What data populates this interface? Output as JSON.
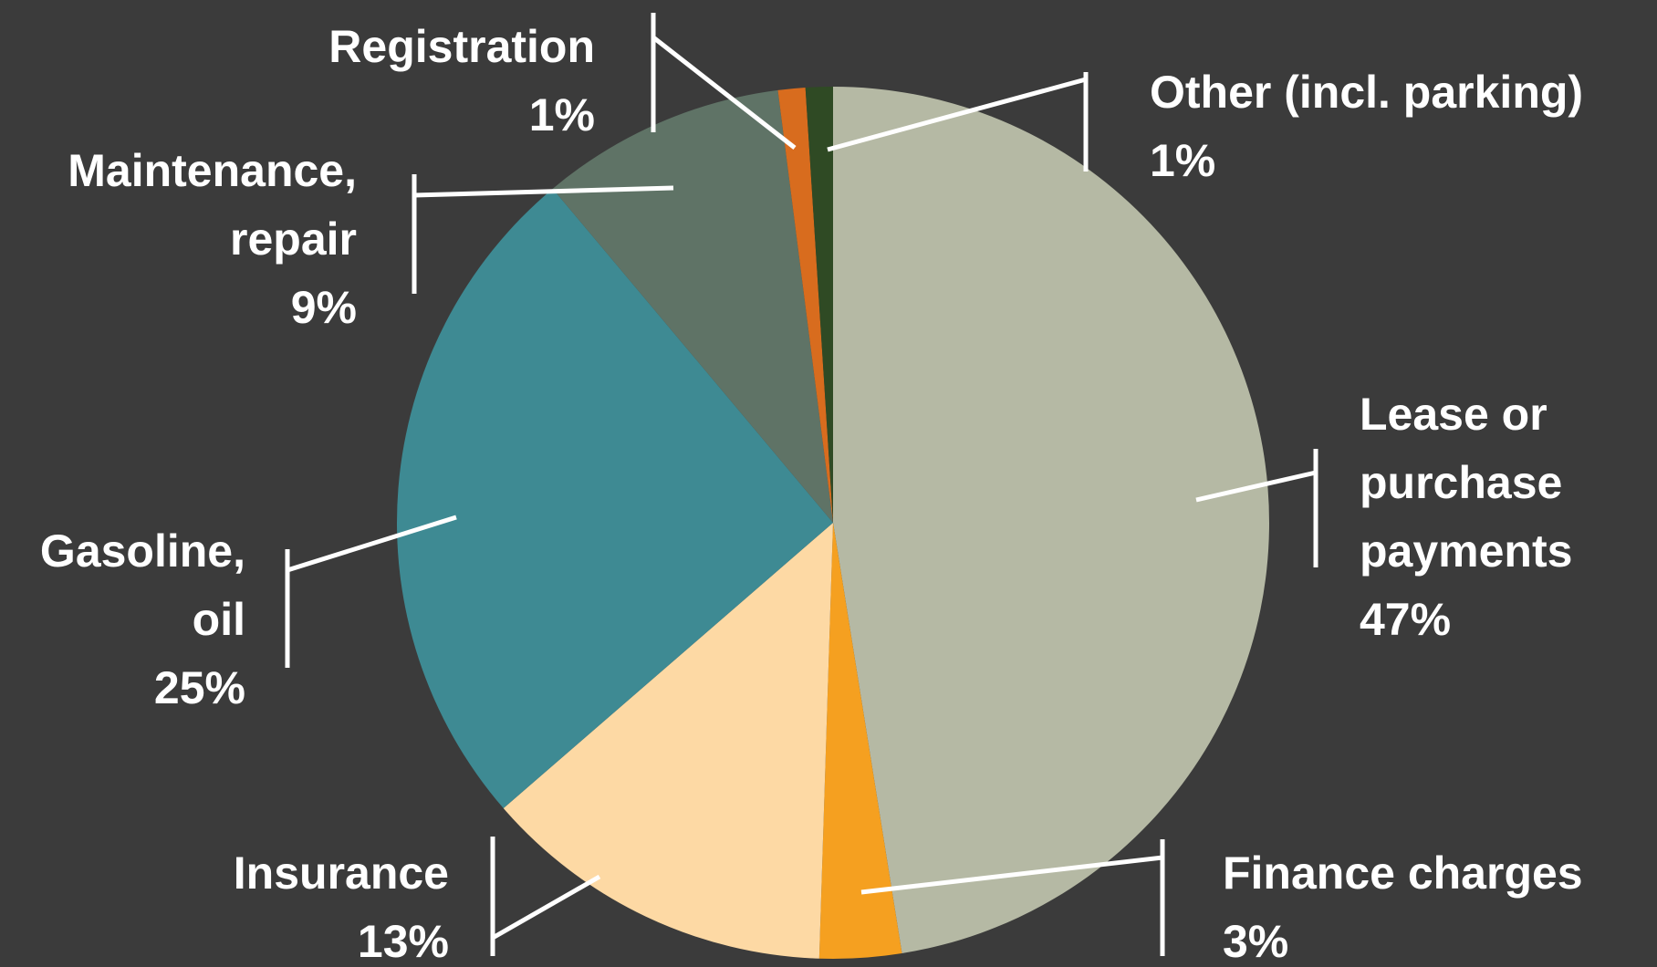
{
  "chart_data": {
    "type": "pie",
    "categories": [
      "Lease or purchase payments",
      "Finance charges",
      "Insurance",
      "Gasoline, oil",
      "Maintenance, repair",
      "Registration",
      "Other (incl. parking)"
    ],
    "values": [
      47,
      3,
      13,
      25,
      9,
      1,
      1
    ],
    "value_labels": [
      "47%",
      "3%",
      "13%",
      "25%",
      "9%",
      "1%",
      "1%"
    ],
    "colors": [
      "#b5b9a4",
      "#f5a020",
      "#fdd9a4",
      "#3e8a93",
      "#5f7366",
      "#d86c1e",
      "#2f4a24"
    ]
  }
}
